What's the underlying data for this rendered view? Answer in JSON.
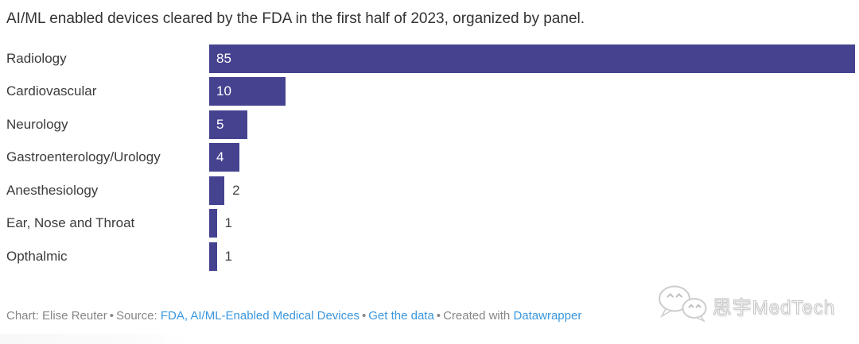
{
  "title": "AI/ML enabled devices cleared by the FDA in the first half of 2023, organized by panel.",
  "chart_data": {
    "type": "bar",
    "orientation": "horizontal",
    "title": "AI/ML enabled devices cleared by the FDA in the first half of 2023, organized by panel.",
    "categories": [
      "Radiology",
      "Cardiovascular",
      "Neurology",
      "Gastroenterology/Urology",
      "Anesthesiology",
      "Ear, Nose and Throat",
      "Opthalmic"
    ],
    "values": [
      85,
      10,
      5,
      4,
      2,
      1,
      1
    ],
    "xlim": [
      0,
      85
    ],
    "grid": false,
    "legend": false,
    "bar_color": "#454390",
    "value_label_inside_color": "#ffffff",
    "value_label_outside_color": "#444444"
  },
  "footer": {
    "credit": "Chart: Elise Reuter",
    "separator": "•",
    "source_label": "Source:",
    "source_link": "FDA, AI/ML-Enabled Medical Devices",
    "get_data_link": "Get the data",
    "created_with": "Created with",
    "datawrapper_link": "Datawrapper",
    "link_color": "#3a96dd"
  },
  "watermark": {
    "icon": "wechat-icon",
    "text": "思宇MedTech"
  }
}
